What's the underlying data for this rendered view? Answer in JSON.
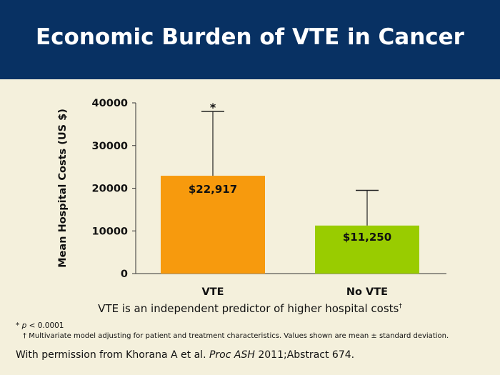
{
  "slide": {
    "title": "Economic Burden of VTE in Cancer",
    "subtitle": "VTE is an independent predictor of higher hospital costs",
    "subtitle_mark": "†",
    "footnote_star_symbol": "*",
    "footnote_p": "p",
    "footnote_p_rest": "< 0.0001",
    "footnote_dagger_symbol": "†",
    "footnote_dagger_text": "Multivariate model adjusting for patient and treatment characteristics. Values shown are mean ± standard deviation.",
    "citation_pre": "With permission from Khorana A et al.",
    "citation_journal": "Proc ASH",
    "citation_post": "2011;Abstract 674."
  },
  "colors": {
    "header_bg": "#083163",
    "background": "#f4f0dc",
    "vte_bar": "#f79a0d",
    "no_vte_bar": "#99cc00"
  },
  "chart_data": {
    "type": "bar",
    "title": "",
    "xlabel": "",
    "ylabel": "Mean Hospital Costs (US $)",
    "ylim": [
      0,
      40000
    ],
    "yticks": [
      "0",
      "10000",
      "20000",
      "30000",
      "40000"
    ],
    "categories": [
      "VTE",
      "No VTE"
    ],
    "values": [
      22917,
      11250
    ],
    "error_upper": [
      38000,
      19500
    ],
    "data_labels": [
      "$22,917",
      "$11,250"
    ],
    "significance_marker": "*",
    "grid": false
  }
}
